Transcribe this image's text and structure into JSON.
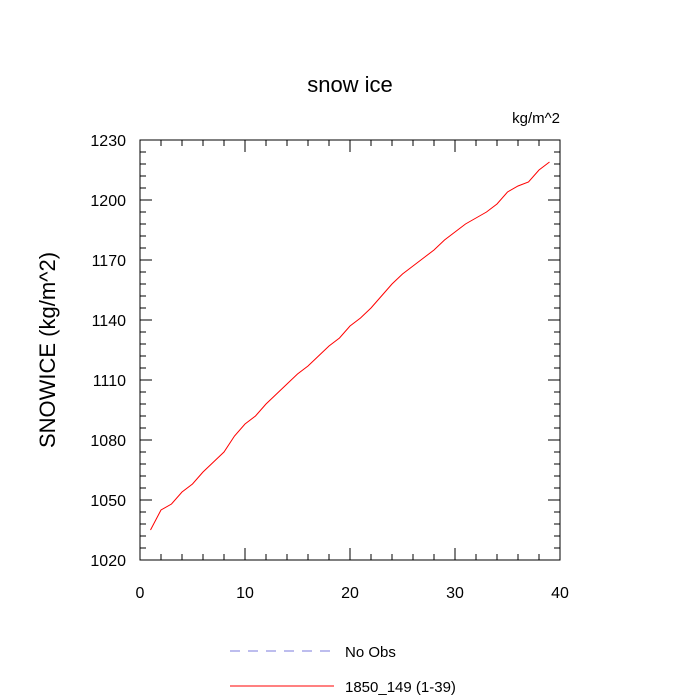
{
  "chart_data": {
    "type": "line",
    "title": "snow ice",
    "units_label": "kg/m^2",
    "ylabel": "SNOWICE  (kg/m^2)",
    "xlabel": "",
    "xlim": [
      0,
      40
    ],
    "ylim": [
      1020,
      1230
    ],
    "xticks": [
      0,
      10,
      20,
      30,
      40
    ],
    "yticks": [
      1020,
      1050,
      1080,
      1110,
      1140,
      1170,
      1200,
      1230
    ],
    "grid": false,
    "legend_position": "bottom",
    "series": [
      {
        "name": "No Obs",
        "color": "#7b7bdc",
        "dash": "dashed",
        "x": [],
        "y": []
      },
      {
        "name": "1850_149 (1-39)",
        "color": "#ff0000",
        "dash": "solid",
        "x": [
          1,
          2,
          3,
          4,
          5,
          6,
          7,
          8,
          9,
          10,
          11,
          12,
          13,
          14,
          15,
          16,
          17,
          18,
          19,
          20,
          21,
          22,
          23,
          24,
          25,
          26,
          27,
          28,
          29,
          30,
          31,
          32,
          33,
          34,
          35,
          36,
          37,
          38,
          39
        ],
        "y": [
          1035,
          1045,
          1048,
          1054,
          1058,
          1064,
          1069,
          1074,
          1082,
          1088,
          1092,
          1098,
          1103,
          1108,
          1113,
          1117,
          1122,
          1127,
          1131,
          1137,
          1141,
          1146,
          1152,
          1158,
          1163,
          1167,
          1171,
          1175,
          1180,
          1184,
          1188,
          1191,
          1194,
          1198,
          1204,
          1207,
          1209,
          1215,
          1219
        ]
      }
    ]
  }
}
